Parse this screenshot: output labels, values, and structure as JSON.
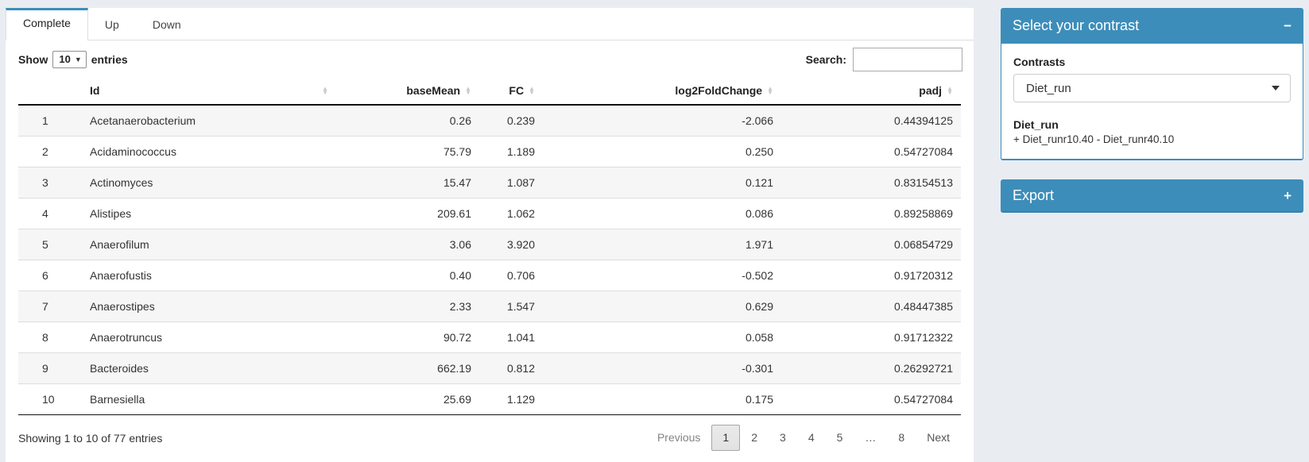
{
  "colors": {
    "accent": "#3d8dba",
    "page_bg": "#e9edf2"
  },
  "tabs": [
    {
      "label": "Complete",
      "active": true
    },
    {
      "label": "Up",
      "active": false
    },
    {
      "label": "Down",
      "active": false
    }
  ],
  "controls": {
    "show_label": "Show",
    "page_length": "10",
    "entries_label": "entries",
    "search_label": "Search:",
    "search_value": ""
  },
  "table": {
    "columns": [
      {
        "label": "",
        "align": "left",
        "sortable": false
      },
      {
        "label": "Id",
        "align": "left",
        "sortable": true
      },
      {
        "label": "baseMean",
        "align": "right",
        "sortable": true
      },
      {
        "label": "FC",
        "align": "right",
        "sortable": true
      },
      {
        "label": "log2FoldChange",
        "align": "right",
        "sortable": true
      },
      {
        "label": "padj",
        "align": "right",
        "sortable": true
      }
    ],
    "rows": [
      [
        "1",
        "Acetanaerobacterium",
        "0.26",
        "0.239",
        "-2.066",
        "0.44394125"
      ],
      [
        "2",
        "Acidaminococcus",
        "75.79",
        "1.189",
        "0.250",
        "0.54727084"
      ],
      [
        "3",
        "Actinomyces",
        "15.47",
        "1.087",
        "0.121",
        "0.83154513"
      ],
      [
        "4",
        "Alistipes",
        "209.61",
        "1.062",
        "0.086",
        "0.89258869"
      ],
      [
        "5",
        "Anaerofilum",
        "3.06",
        "3.920",
        "1.971",
        "0.06854729"
      ],
      [
        "6",
        "Anaerofustis",
        "0.40",
        "0.706",
        "-0.502",
        "0.91720312"
      ],
      [
        "7",
        "Anaerostipes",
        "2.33",
        "1.547",
        "0.629",
        "0.48447385"
      ],
      [
        "8",
        "Anaerotruncus",
        "90.72",
        "1.041",
        "0.058",
        "0.91712322"
      ],
      [
        "9",
        "Bacteroides",
        "662.19",
        "0.812",
        "-0.301",
        "0.26292721"
      ],
      [
        "10",
        "Barnesiella",
        "25.69",
        "1.129",
        "0.175",
        "0.54727084"
      ]
    ]
  },
  "footer": {
    "info": "Showing 1 to 10 of 77 entries",
    "pagination": {
      "items": [
        "Previous",
        "1",
        "2",
        "3",
        "4",
        "5",
        "…",
        "8",
        "Next"
      ],
      "active": "1",
      "disabled": [
        "Previous"
      ]
    }
  },
  "contrast_panel": {
    "title": "Select your contrast",
    "collapse_icon": "−",
    "contrasts_label": "Contrasts",
    "selected_contrast": "Diet_run",
    "detail_title": "Diet_run",
    "detail_text": "+ Diet_runr10.40 - Diet_runr40.10"
  },
  "export_panel": {
    "title": "Export",
    "collapse_icon": "+"
  }
}
